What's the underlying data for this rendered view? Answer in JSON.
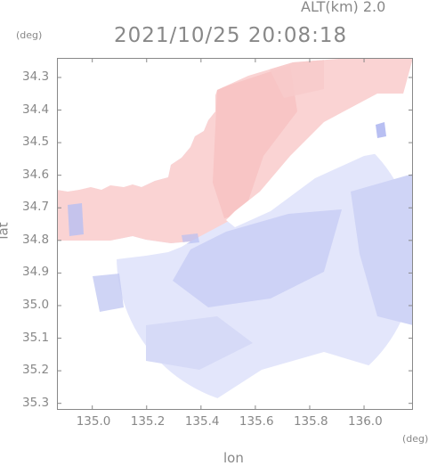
{
  "header": {
    "altitude": "ALT(km) 2.0",
    "timestamp": "2021/10/25 20:08:18"
  },
  "axes": {
    "y_unit": "(deg)",
    "x_unit": "(deg)",
    "x_label": "lon",
    "y_label": "lat",
    "x_ticks": [
      "135.0",
      "135.2",
      "135.4",
      "135.6",
      "135.8",
      "136.0"
    ],
    "y_ticks": [
      "35.3",
      "35.2",
      "35.1",
      "35.0",
      "34.9",
      "34.8",
      "34.7",
      "34.6",
      "34.5",
      "34.4",
      "34.3"
    ]
  },
  "chart_data": {
    "type": "heatmap",
    "title": "2021/10/25 20:08:18",
    "subtitle": "ALT(km) 2.0",
    "xlabel": "lon",
    "ylabel": "lat",
    "x_unit": "(deg)",
    "y_unit": "(deg)",
    "xlim": [
      134.87,
      136.18
    ],
    "ylim": [
      34.28,
      35.36
    ],
    "x_ticks": [
      135.0,
      135.2,
      135.4,
      135.6,
      135.8,
      136.0
    ],
    "y_ticks": [
      34.3,
      34.4,
      34.5,
      34.6,
      34.7,
      34.8,
      34.9,
      35.0,
      35.1,
      35.2,
      35.3
    ],
    "grid": false,
    "radar_center": [
      135.56,
      34.82
    ],
    "colors": {
      "positive": "#f4b3b3",
      "negative": "#b8bff2",
      "neutral": "#ffffff",
      "axis": "#888888"
    }
  }
}
